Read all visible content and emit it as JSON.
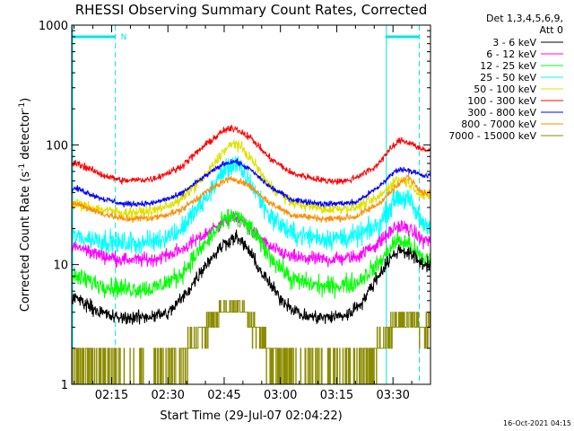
{
  "chart_data": {
    "type": "line",
    "title": "RHESSI Observing Summary Count Rates, Corrected",
    "xlabel": "Start Time (29-Jul-07 02:04:22)",
    "ylabel_main": "Corrected Count Rate (s",
    "ylabel_sup1": "-1",
    "ylabel_mid": " detector",
    "ylabel_sup2": "-1",
    "ylabel_end": ")",
    "yscale": "log",
    "ylim": [
      1,
      1000
    ],
    "xlim": [
      "02:04:22",
      "03:40:00"
    ],
    "x_ticks": [
      "02:15",
      "02:30",
      "02:45",
      "03:00",
      "03:15",
      "03:30"
    ],
    "y_ticks": [
      "1",
      "10",
      "100",
      "1000"
    ],
    "timestamp": "16-Oct-2021 04:15",
    "legend_header": [
      "Det 1,3,4,5,6,9,",
      "Att 0"
    ],
    "flag_label": "N",
    "flags": {
      "color": "#00e5e5",
      "night_intervals": [
        [
          "02:04:22",
          "02:16:00"
        ],
        [
          "03:28:00",
          "03:37:00"
        ]
      ]
    },
    "series": [
      {
        "name": "3 - 6 keV",
        "color": "#000000",
        "noise": 0.05,
        "quantized": false,
        "points": [
          [
            "02:06",
            5.2
          ],
          [
            "02:12",
            4.0
          ],
          [
            "02:16",
            3.6
          ],
          [
            "02:22",
            3.6
          ],
          [
            "02:30",
            3.9
          ],
          [
            "02:35",
            5.8
          ],
          [
            "02:40",
            10
          ],
          [
            "02:45",
            15
          ],
          [
            "02:48",
            17
          ],
          [
            "02:51",
            14
          ],
          [
            "02:55",
            8.5
          ],
          [
            "03:00",
            5.2
          ],
          [
            "03:06",
            3.7
          ],
          [
            "03:12",
            3.6
          ],
          [
            "03:18",
            3.8
          ],
          [
            "03:22",
            5.0
          ],
          [
            "03:26",
            8.0
          ],
          [
            "03:29",
            11
          ],
          [
            "03:32",
            13.5
          ],
          [
            "03:35",
            12
          ],
          [
            "03:38",
            10
          ]
        ]
      },
      {
        "name": "6 - 12 keV",
        "color": "#ff00ff",
        "noise": 0.05,
        "quantized": false,
        "points": [
          [
            "02:06",
            14
          ],
          [
            "02:12",
            12
          ],
          [
            "02:18",
            11
          ],
          [
            "02:26",
            11
          ],
          [
            "02:33",
            13
          ],
          [
            "02:40",
            18
          ],
          [
            "02:45",
            23
          ],
          [
            "02:48",
            25
          ],
          [
            "02:52",
            20
          ],
          [
            "02:57",
            14
          ],
          [
            "03:03",
            11.5
          ],
          [
            "03:12",
            11
          ],
          [
            "03:20",
            11.5
          ],
          [
            "03:26",
            15
          ],
          [
            "03:31",
            21
          ],
          [
            "03:34",
            20
          ],
          [
            "03:38",
            16
          ]
        ]
      },
      {
        "name": "12 - 25 keV",
        "color": "#00ff00",
        "noise": 0.07,
        "quantized": false,
        "points": [
          [
            "02:06",
            7.8
          ],
          [
            "02:12",
            6.8
          ],
          [
            "02:18",
            6.3
          ],
          [
            "02:26",
            6.3
          ],
          [
            "02:33",
            8.0
          ],
          [
            "02:40",
            15
          ],
          [
            "02:45",
            23
          ],
          [
            "02:48",
            26
          ],
          [
            "02:52",
            20
          ],
          [
            "02:57",
            12
          ],
          [
            "03:03",
            7.5
          ],
          [
            "03:12",
            6.5
          ],
          [
            "03:20",
            7.0
          ],
          [
            "03:26",
            10
          ],
          [
            "03:31",
            16
          ],
          [
            "03:34",
            15
          ],
          [
            "03:38",
            11
          ]
        ]
      },
      {
        "name": "25 - 50 keV",
        "color": "#00ffff",
        "noise": 0.08,
        "quantized": false,
        "points": [
          [
            "02:06",
            17
          ],
          [
            "02:12",
            16
          ],
          [
            "02:18",
            15
          ],
          [
            "02:26",
            15.5
          ],
          [
            "02:33",
            19
          ],
          [
            "02:40",
            35
          ],
          [
            "02:45",
            62
          ],
          [
            "02:48",
            70
          ],
          [
            "02:52",
            48
          ],
          [
            "02:57",
            26
          ],
          [
            "03:03",
            18
          ],
          [
            "03:12",
            16.5
          ],
          [
            "03:20",
            17
          ],
          [
            "03:26",
            21
          ],
          [
            "03:31",
            37
          ],
          [
            "03:34",
            35
          ],
          [
            "03:38",
            22
          ]
        ]
      },
      {
        "name": "50 - 100 keV",
        "color": "#e0e000",
        "noise": 0.04,
        "quantized": false,
        "points": [
          [
            "02:06",
            32
          ],
          [
            "02:12",
            29
          ],
          [
            "02:18",
            27
          ],
          [
            "02:26",
            28
          ],
          [
            "02:33",
            34
          ],
          [
            "02:40",
            55
          ],
          [
            "02:45",
            90
          ],
          [
            "02:48",
            105
          ],
          [
            "02:52",
            78
          ],
          [
            "02:57",
            46
          ],
          [
            "03:03",
            33
          ],
          [
            "03:12",
            29
          ],
          [
            "03:20",
            30
          ],
          [
            "03:26",
            36
          ],
          [
            "03:31",
            52
          ],
          [
            "03:34",
            49
          ],
          [
            "03:38",
            37
          ]
        ]
      },
      {
        "name": "100 - 300 keV",
        "color": "#ff0000",
        "noise": 0.025,
        "quantized": false,
        "points": [
          [
            "02:06",
            70
          ],
          [
            "02:12",
            57
          ],
          [
            "02:18",
            50
          ],
          [
            "02:26",
            52
          ],
          [
            "02:33",
            64
          ],
          [
            "02:40",
            100
          ],
          [
            "02:45",
            132
          ],
          [
            "02:48",
            138
          ],
          [
            "02:52",
            115
          ],
          [
            "02:57",
            78
          ],
          [
            "03:03",
            58
          ],
          [
            "03:12",
            50
          ],
          [
            "03:18",
            50
          ],
          [
            "03:25",
            64
          ],
          [
            "03:29",
            90
          ],
          [
            "03:32",
            110
          ],
          [
            "03:35",
            103
          ],
          [
            "03:38",
            90
          ]
        ]
      },
      {
        "name": "300 - 800 keV",
        "color": "#0000ff",
        "noise": 0.02,
        "quantized": false,
        "points": [
          [
            "02:06",
            43
          ],
          [
            "02:12",
            36
          ],
          [
            "02:18",
            32
          ],
          [
            "02:26",
            32.5
          ],
          [
            "02:33",
            38
          ],
          [
            "02:40",
            55
          ],
          [
            "02:45",
            70
          ],
          [
            "02:48",
            73
          ],
          [
            "02:52",
            62
          ],
          [
            "02:57",
            45
          ],
          [
            "03:03",
            35
          ],
          [
            "03:12",
            32
          ],
          [
            "03:20",
            33
          ],
          [
            "03:26",
            44
          ],
          [
            "03:31",
            62
          ],
          [
            "03:34",
            62
          ],
          [
            "03:38",
            55
          ]
        ]
      },
      {
        "name": "800 - 7000 keV",
        "color": "#ff8c00",
        "noise": 0.025,
        "quantized": false,
        "points": [
          [
            "02:06",
            32
          ],
          [
            "02:12",
            27
          ],
          [
            "02:18",
            24
          ],
          [
            "02:26",
            24.5
          ],
          [
            "02:33",
            28
          ],
          [
            "02:40",
            40
          ],
          [
            "02:45",
            50
          ],
          [
            "02:48",
            52
          ],
          [
            "02:52",
            45
          ],
          [
            "02:57",
            33
          ],
          [
            "03:03",
            26
          ],
          [
            "03:12",
            24
          ],
          [
            "03:20",
            25
          ],
          [
            "03:26",
            32
          ],
          [
            "03:31",
            45
          ],
          [
            "03:34",
            55
          ],
          [
            "03:38",
            40
          ]
        ]
      },
      {
        "name": "7000 - 15000 keV",
        "color": "#8b8b00",
        "noise": 0,
        "quantized": true,
        "points": [
          [
            "02:05",
            1.7
          ],
          [
            "02:10",
            1.5
          ],
          [
            "02:14",
            1.2
          ],
          [
            "02:20",
            1.0
          ],
          [
            "02:28",
            1.0
          ],
          [
            "02:33",
            1.5
          ],
          [
            "02:37",
            2.2
          ],
          [
            "02:41",
            3.2
          ],
          [
            "02:45",
            4.5
          ],
          [
            "02:49",
            4.5
          ],
          [
            "02:53",
            3.0
          ],
          [
            "02:57",
            2.0
          ],
          [
            "03:01",
            1.3
          ],
          [
            "03:06",
            1.0
          ],
          [
            "03:12",
            1.0
          ],
          [
            "03:18",
            1.2
          ],
          [
            "03:23",
            1.7
          ],
          [
            "03:27",
            2.3
          ],
          [
            "03:31",
            3.5
          ],
          [
            "03:35",
            3.5
          ],
          [
            "03:38",
            3.0
          ]
        ]
      }
    ]
  }
}
